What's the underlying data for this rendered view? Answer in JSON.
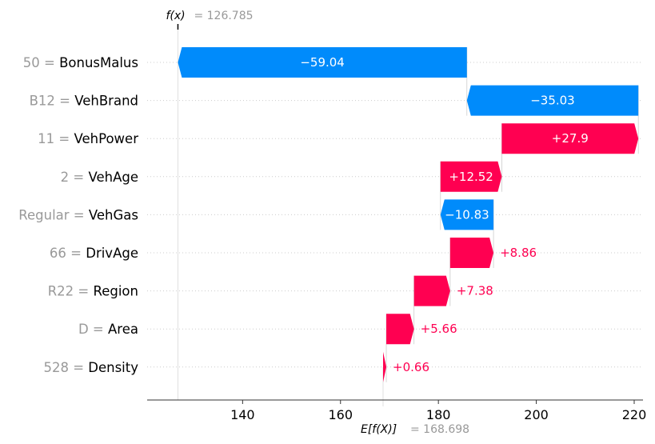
{
  "chart_data": {
    "type": "waterfall",
    "fx_label": "f(x)",
    "fx_value": "= 126.785",
    "fx_number": 126.785,
    "base_label": "E[f(X)]",
    "base_value": "= 168.698",
    "base_number": 168.698,
    "xlim": [
      120.5,
      221.8
    ],
    "xticks": [
      140,
      160,
      180,
      200,
      220
    ],
    "xtick_labels": [
      "140",
      "160",
      "180",
      "200",
      "220"
    ],
    "features": [
      {
        "value": "50",
        "name": "BonusMalus",
        "contribution": -59.04,
        "label": "−59.04"
      },
      {
        "value": "B12",
        "name": "VehBrand",
        "contribution": -35.03,
        "label": "−35.03"
      },
      {
        "value": "11",
        "name": "VehPower",
        "contribution": 27.9,
        "label": "+27.9"
      },
      {
        "value": "2",
        "name": "VehAge",
        "contribution": 12.52,
        "label": "+12.52"
      },
      {
        "value": "Regular",
        "name": "VehGas",
        "contribution": -10.83,
        "label": "−10.83"
      },
      {
        "value": "66",
        "name": "DrivAge",
        "contribution": 8.86,
        "label": "+8.86"
      },
      {
        "value": "R22",
        "name": "Region",
        "contribution": 7.38,
        "label": "+7.38"
      },
      {
        "value": "D",
        "name": "Area",
        "contribution": 5.66,
        "label": "+5.66"
      },
      {
        "value": "528",
        "name": "Density",
        "contribution": 0.66,
        "label": "+0.66"
      }
    ],
    "colors": {
      "positive": "#ff0051",
      "negative": "#008bfb",
      "axis": "#333333",
      "muted": "#999999",
      "grid": "#cccccc"
    }
  }
}
